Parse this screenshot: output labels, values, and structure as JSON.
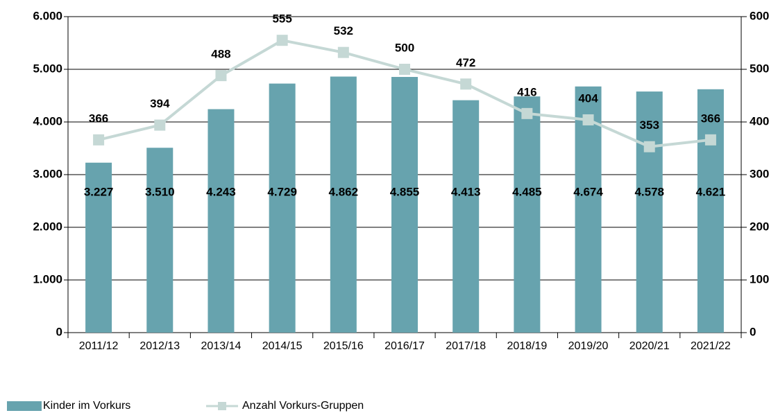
{
  "chart_data": {
    "type": "bar",
    "categories": [
      "2011/12",
      "2012/13",
      "2013/14",
      "2014/15",
      "2015/16",
      "2016/17",
      "2017/18",
      "2018/19",
      "2019/20",
      "2020/21",
      "2021/22"
    ],
    "series": [
      {
        "name": "Kinder im Vorkurs",
        "type": "bar",
        "color": "#67a3ae",
        "values": [
          3227,
          3510,
          4243,
          4729,
          4862,
          4855,
          4413,
          4485,
          4674,
          4578,
          4621
        ],
        "value_labels": [
          "3.227",
          "3.510",
          "4.243",
          "4.729",
          "4.862",
          "4.855",
          "4.413",
          "4.485",
          "4.674",
          "4.578",
          "4.621"
        ]
      },
      {
        "name": "Anzahl Vorkurs-Gruppen",
        "type": "line",
        "axis": "y2",
        "color": "#c5d8d5",
        "values": [
          366,
          394,
          488,
          555,
          532,
          500,
          472,
          416,
          404,
          353,
          366
        ]
      }
    ],
    "ylim": [
      0,
      6000
    ],
    "yticks": [
      0,
      {
        "value": 1000,
        "label": "1.000"
      },
      {
        "value": 2000,
        "label": "2.000"
      },
      {
        "value": 3000,
        "label": "3.000"
      },
      {
        "value": 4000,
        "label": "4.000"
      },
      {
        "value": 5000,
        "label": "5.000"
      },
      {
        "value": 6000,
        "label": "6.000"
      }
    ],
    "y2lim": [
      0,
      600
    ],
    "y2ticks": [
      0,
      100,
      200,
      300,
      400,
      500,
      600
    ],
    "grid": true,
    "legend": "bottom"
  }
}
